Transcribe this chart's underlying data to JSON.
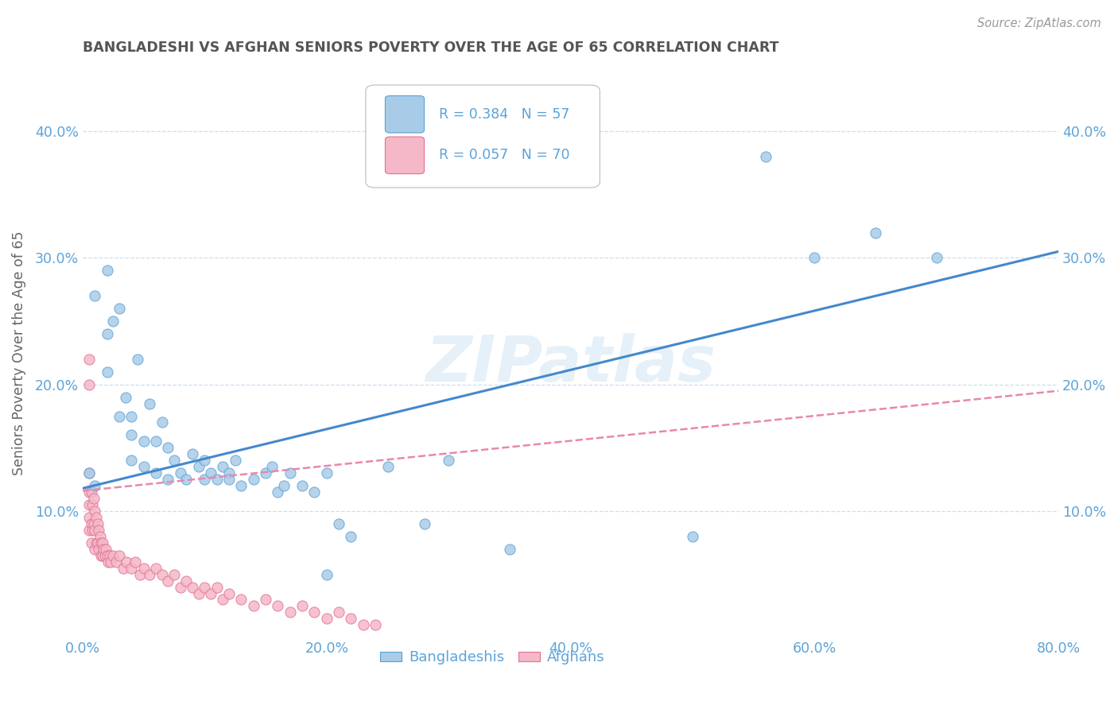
{
  "title": "BANGLADESHI VS AFGHAN SENIORS POVERTY OVER THE AGE OF 65 CORRELATION CHART",
  "source": "Source: ZipAtlas.com",
  "ylabel": "Seniors Poverty Over the Age of 65",
  "bg_color": "#ffffff",
  "bangladeshi_color": "#a8cce8",
  "bangladeshi_edge_color": "#5b9fd4",
  "afghan_color": "#f5b8c8",
  "afghan_edge_color": "#e07090",
  "bangladeshi_line_color": "#4488cc",
  "afghan_line_color": "#e888aa",
  "watermark": "ZIPatlas",
  "axis_color": "#5ba3d9",
  "grid_color": "#c8dff0",
  "title_color": "#555555",
  "source_color": "#999999",
  "xlim": [
    0.0,
    0.8
  ],
  "ylim": [
    0.0,
    0.45
  ],
  "xticks": [
    0.0,
    0.2,
    0.4,
    0.6,
    0.8
  ],
  "yticks": [
    0.1,
    0.2,
    0.3,
    0.4
  ],
  "legend_R_bangladeshi": "0.384",
  "legend_N_bangladeshi": "57",
  "legend_R_afghan": "0.057",
  "legend_N_afghan": "70",
  "bangladeshi_x": [
    0.005,
    0.01,
    0.01,
    0.02,
    0.02,
    0.02,
    0.025,
    0.03,
    0.03,
    0.035,
    0.04,
    0.04,
    0.04,
    0.045,
    0.05,
    0.05,
    0.055,
    0.06,
    0.06,
    0.065,
    0.07,
    0.07,
    0.075,
    0.08,
    0.085,
    0.09,
    0.095,
    0.1,
    0.1,
    0.105,
    0.11,
    0.115,
    0.12,
    0.12,
    0.125,
    0.13,
    0.14,
    0.15,
    0.155,
    0.16,
    0.165,
    0.17,
    0.18,
    0.19,
    0.2,
    0.21,
    0.22,
    0.25,
    0.28,
    0.3,
    0.35,
    0.5,
    0.56,
    0.6,
    0.65,
    0.7,
    0.2
  ],
  "bangladeshi_y": [
    0.13,
    0.27,
    0.12,
    0.29,
    0.24,
    0.21,
    0.25,
    0.26,
    0.175,
    0.19,
    0.16,
    0.14,
    0.175,
    0.22,
    0.155,
    0.135,
    0.185,
    0.13,
    0.155,
    0.17,
    0.125,
    0.15,
    0.14,
    0.13,
    0.125,
    0.145,
    0.135,
    0.125,
    0.14,
    0.13,
    0.125,
    0.135,
    0.13,
    0.125,
    0.14,
    0.12,
    0.125,
    0.13,
    0.135,
    0.115,
    0.12,
    0.13,
    0.12,
    0.115,
    0.13,
    0.09,
    0.08,
    0.135,
    0.09,
    0.14,
    0.07,
    0.08,
    0.38,
    0.3,
    0.32,
    0.3,
    0.05
  ],
  "afghan_x": [
    0.005,
    0.005,
    0.005,
    0.005,
    0.005,
    0.005,
    0.005,
    0.007,
    0.007,
    0.007,
    0.008,
    0.008,
    0.009,
    0.009,
    0.01,
    0.01,
    0.01,
    0.011,
    0.011,
    0.012,
    0.012,
    0.013,
    0.013,
    0.014,
    0.015,
    0.015,
    0.016,
    0.016,
    0.017,
    0.018,
    0.019,
    0.02,
    0.021,
    0.022,
    0.023,
    0.025,
    0.027,
    0.03,
    0.033,
    0.036,
    0.04,
    0.043,
    0.047,
    0.05,
    0.055,
    0.06,
    0.065,
    0.07,
    0.075,
    0.08,
    0.085,
    0.09,
    0.095,
    0.1,
    0.105,
    0.11,
    0.115,
    0.12,
    0.13,
    0.14,
    0.15,
    0.16,
    0.17,
    0.18,
    0.19,
    0.2,
    0.21,
    0.22,
    0.23,
    0.24
  ],
  "afghan_y": [
    0.22,
    0.2,
    0.13,
    0.115,
    0.105,
    0.095,
    0.085,
    0.115,
    0.09,
    0.075,
    0.105,
    0.085,
    0.11,
    0.09,
    0.1,
    0.085,
    0.07,
    0.095,
    0.075,
    0.09,
    0.075,
    0.085,
    0.07,
    0.08,
    0.075,
    0.065,
    0.075,
    0.065,
    0.07,
    0.065,
    0.07,
    0.065,
    0.06,
    0.065,
    0.06,
    0.065,
    0.06,
    0.065,
    0.055,
    0.06,
    0.055,
    0.06,
    0.05,
    0.055,
    0.05,
    0.055,
    0.05,
    0.045,
    0.05,
    0.04,
    0.045,
    0.04,
    0.035,
    0.04,
    0.035,
    0.04,
    0.03,
    0.035,
    0.03,
    0.025,
    0.03,
    0.025,
    0.02,
    0.025,
    0.02,
    0.015,
    0.02,
    0.015,
    0.01,
    0.01
  ],
  "bangladeshi_trend_x": [
    0.0,
    0.8
  ],
  "bangladeshi_trend_y": [
    0.118,
    0.305
  ],
  "afghan_trend_x": [
    0.0,
    0.8
  ],
  "afghan_trend_y": [
    0.116,
    0.195
  ]
}
